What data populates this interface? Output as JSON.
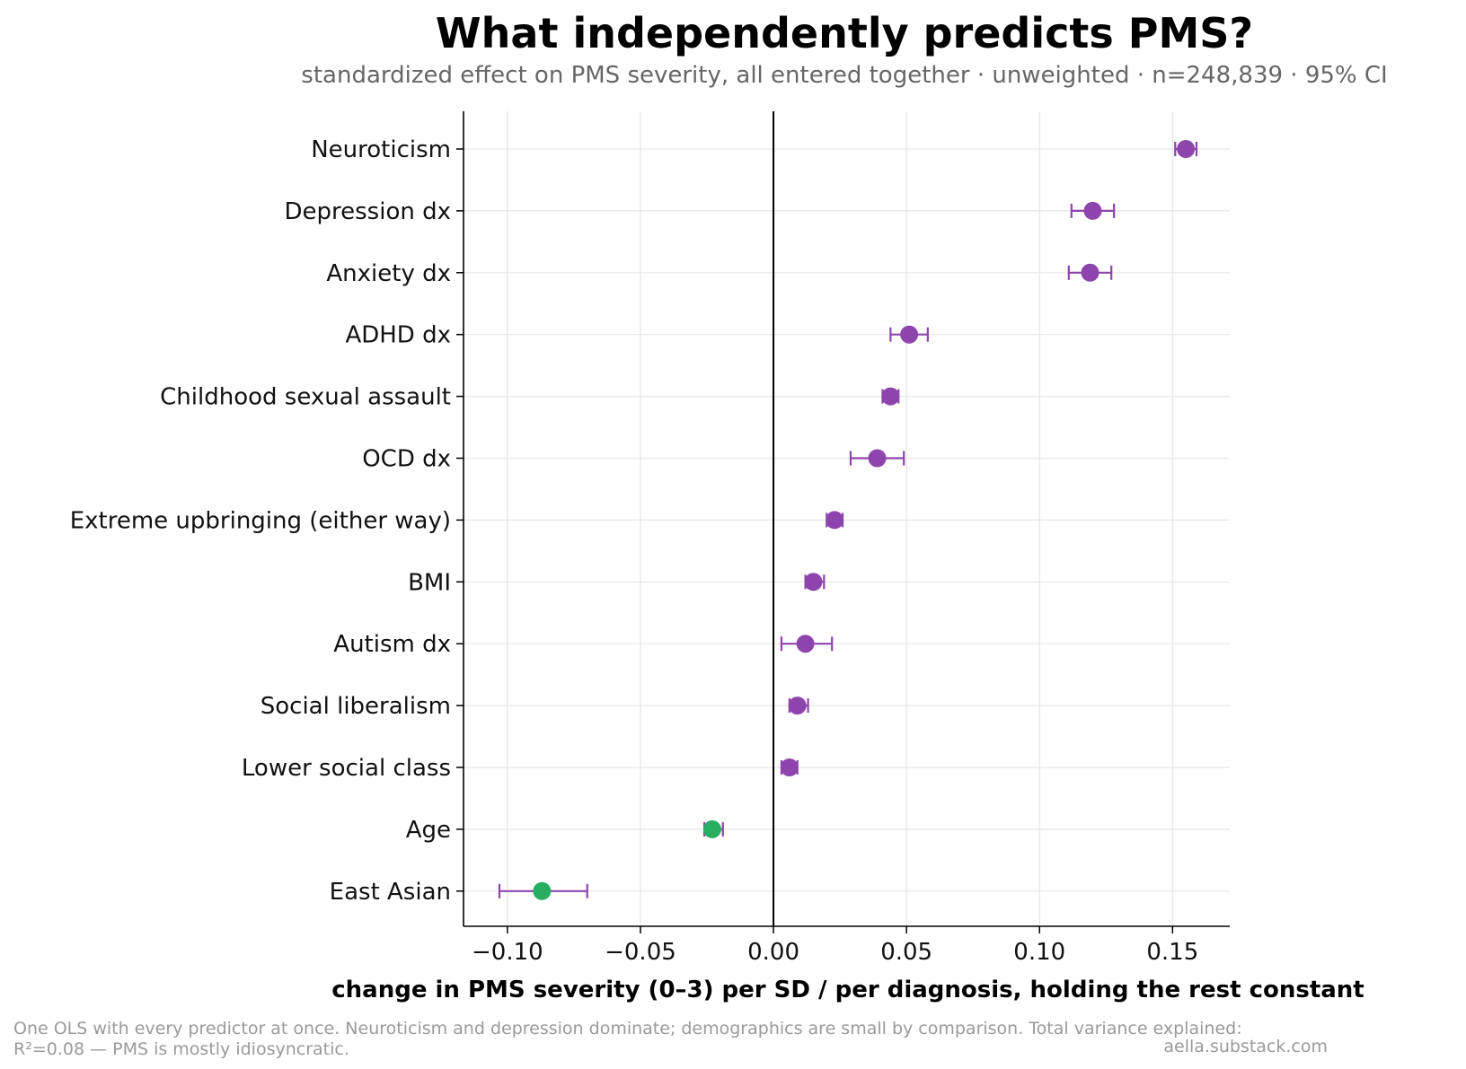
{
  "chart_data": {
    "type": "scatter",
    "title": "What independently predicts PMS?",
    "subtitle": "standardized effect on PMS severity, all entered together · unweighted · n=248,839 · 95% CI",
    "xlabel": "change in PMS severity (0–3) per SD / per diagnosis, holding the rest constant",
    "ylabel": "",
    "xlim": [
      -0.1165,
      0.1715
    ],
    "x_ticks": [
      -0.1,
      -0.05,
      0.0,
      0.05,
      0.1,
      0.15
    ],
    "x_tick_labels": [
      "−0.10",
      "−0.05",
      "0.00",
      "0.05",
      "0.10",
      "0.15"
    ],
    "reference_line_x": 0.0,
    "grid": true,
    "colors": {
      "positive": "#8e44ad",
      "negative": "#27ae60",
      "ci": "#8e44ad"
    },
    "points": [
      {
        "label": "Neuroticism",
        "estimate": 0.155,
        "ci_low": 0.151,
        "ci_high": 0.159
      },
      {
        "label": "Depression dx",
        "estimate": 0.12,
        "ci_low": 0.112,
        "ci_high": 0.128
      },
      {
        "label": "Anxiety dx",
        "estimate": 0.119,
        "ci_low": 0.111,
        "ci_high": 0.127
      },
      {
        "label": "ADHD dx",
        "estimate": 0.051,
        "ci_low": 0.044,
        "ci_high": 0.058
      },
      {
        "label": "Childhood sexual assault",
        "estimate": 0.044,
        "ci_low": 0.041,
        "ci_high": 0.047
      },
      {
        "label": "OCD dx",
        "estimate": 0.039,
        "ci_low": 0.029,
        "ci_high": 0.049
      },
      {
        "label": "Extreme upbringing (either way)",
        "estimate": 0.023,
        "ci_low": 0.02,
        "ci_high": 0.026
      },
      {
        "label": "BMI",
        "estimate": 0.015,
        "ci_low": 0.012,
        "ci_high": 0.019
      },
      {
        "label": "Autism dx",
        "estimate": 0.012,
        "ci_low": 0.003,
        "ci_high": 0.022
      },
      {
        "label": "Social liberalism",
        "estimate": 0.009,
        "ci_low": 0.006,
        "ci_high": 0.013
      },
      {
        "label": "Lower social class",
        "estimate": 0.006,
        "ci_low": 0.003,
        "ci_high": 0.009
      },
      {
        "label": "Age",
        "estimate": -0.023,
        "ci_low": -0.026,
        "ci_high": -0.019
      },
      {
        "label": "East Asian",
        "estimate": -0.087,
        "ci_low": -0.103,
        "ci_high": -0.07
      }
    ]
  },
  "footer": {
    "note_line1": "One OLS with every predictor at once. Neuroticism and depression dominate; demographics are small by comparison. Total variance explained:",
    "note_line2": "R²=0.08 — PMS is mostly idiosyncratic.",
    "source": "aella.substack.com"
  }
}
